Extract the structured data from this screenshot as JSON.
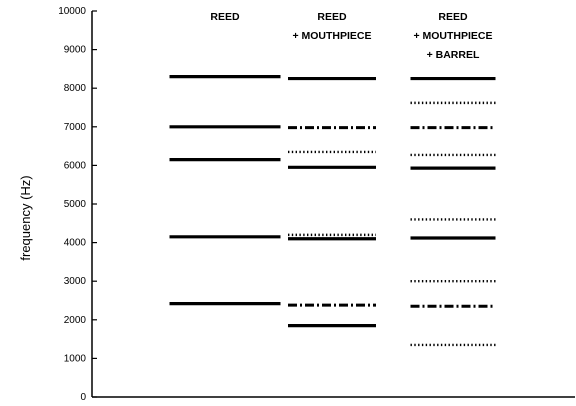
{
  "chart_data": {
    "type": "scatter",
    "title": "",
    "xlabel": "",
    "ylabel": "frequency (Hz)",
    "ylim": [
      0,
      10000
    ],
    "yticks": [
      0,
      1000,
      2000,
      3000,
      4000,
      5000,
      6000,
      7000,
      8000,
      9000,
      10000
    ],
    "grid": false,
    "categories": [
      {
        "name": "reed",
        "label_lines": [
          "REED"
        ]
      },
      {
        "name": "reed-mouthpiece",
        "label_lines": [
          "REED",
          "+ MOUTHPIECE"
        ]
      },
      {
        "name": "reed-mouthpiece-barrel",
        "label_lines": [
          "REED",
          "+ MOUTHPIECE",
          "+ BARREL"
        ]
      }
    ],
    "line_styles": {
      "solid": "solid",
      "dashdot": "dash-dot",
      "dotted": "dotted"
    },
    "series": [
      {
        "category": "reed",
        "points": [
          {
            "value": 8300,
            "style": "solid"
          },
          {
            "value": 7000,
            "style": "solid"
          },
          {
            "value": 6150,
            "style": "solid"
          },
          {
            "value": 4150,
            "style": "solid"
          },
          {
            "value": 2420,
            "style": "solid"
          }
        ]
      },
      {
        "category": "reed-mouthpiece",
        "points": [
          {
            "value": 8250,
            "style": "solid"
          },
          {
            "value": 6980,
            "style": "dashdot"
          },
          {
            "value": 6350,
            "style": "dotted"
          },
          {
            "value": 5950,
            "style": "solid"
          },
          {
            "value": 4200,
            "style": "dotted"
          },
          {
            "value": 4100,
            "style": "solid"
          },
          {
            "value": 2380,
            "style": "dashdot"
          },
          {
            "value": 1850,
            "style": "solid"
          }
        ]
      },
      {
        "category": "reed-mouthpiece-barrel",
        "points": [
          {
            "value": 8250,
            "style": "solid"
          },
          {
            "value": 7620,
            "style": "dotted"
          },
          {
            "value": 6980,
            "style": "dashdot"
          },
          {
            "value": 6270,
            "style": "dotted"
          },
          {
            "value": 5930,
            "style": "solid"
          },
          {
            "value": 4600,
            "style": "dotted"
          },
          {
            "value": 4120,
            "style": "solid"
          },
          {
            "value": 3000,
            "style": "dotted"
          },
          {
            "value": 2350,
            "style": "dashdot"
          },
          {
            "value": 1350,
            "style": "dotted"
          }
        ]
      }
    ]
  }
}
